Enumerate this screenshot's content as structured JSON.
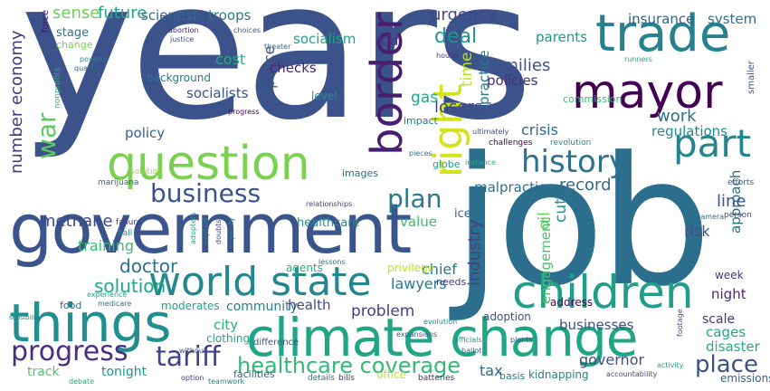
{
  "words": [
    {
      "text": "years",
      "color": "#3b528b"
    },
    {
      "text": "job",
      "color": "#2c6e8e"
    },
    {
      "text": "government",
      "color": "#39558c"
    },
    {
      "text": "climate change",
      "color": "#21a685"
    },
    {
      "text": "question",
      "color": "#7ad151"
    },
    {
      "text": "things",
      "color": "#218f8d"
    },
    {
      "text": "world state",
      "color": "#24868e"
    },
    {
      "text": "children",
      "color": "#1f9e89"
    },
    {
      "text": "trade",
      "color": "#26828e"
    },
    {
      "text": "mayor",
      "color": "#440154"
    },
    {
      "text": "border",
      "color": "#481f70"
    },
    {
      "text": "right",
      "color": "#d2e21b"
    },
    {
      "text": "history",
      "color": "#2d718e"
    },
    {
      "text": "part",
      "color": "#25848e"
    },
    {
      "text": "business",
      "color": "#3b528b"
    },
    {
      "text": "progress",
      "color": "#472f7d"
    },
    {
      "text": "tariff",
      "color": "#414487"
    },
    {
      "text": "healthcare coverage",
      "color": "#35b779"
    },
    {
      "text": "plan",
      "color": "#2a788e"
    },
    {
      "text": "methane",
      "color": "#3e4a89"
    },
    {
      "text": "war",
      "color": "#5ec962"
    },
    {
      "text": "solution",
      "color": "#22a884"
    },
    {
      "text": "doctor",
      "color": "#2d708e"
    },
    {
      "text": "training",
      "color": "#3aba76"
    },
    {
      "text": "number economy",
      "color": "#443a83"
    },
    {
      "text": "sense",
      "color": "#6ece58"
    },
    {
      "text": "future",
      "color": "#22a884"
    },
    {
      "text": "scientist",
      "color": "#31688e"
    },
    {
      "text": "troops",
      "color": "#2a788e"
    },
    {
      "text": "force",
      "color": "#471063"
    },
    {
      "text": "socialism",
      "color": "#20a486"
    },
    {
      "text": "kid",
      "color": "#443983"
    },
    {
      "text": "urgency",
      "color": "#3f4788"
    },
    {
      "text": "deal",
      "color": "#20938c"
    },
    {
      "text": "parents",
      "color": "#1f9a8a"
    },
    {
      "text": "insurance",
      "color": "#355f8d"
    },
    {
      "text": "system",
      "color": "#2d718e"
    },
    {
      "text": "families",
      "color": "#3b528b"
    },
    {
      "text": "policies",
      "color": "#472d7b"
    },
    {
      "text": "time",
      "color": "#bddf26"
    },
    {
      "text": "practice",
      "color": "#2a778e"
    },
    {
      "text": "work",
      "color": "#2e6d8e"
    },
    {
      "text": "regulations",
      "color": "#23888e"
    },
    {
      "text": "crisis",
      "color": "#31688e"
    },
    {
      "text": "losers",
      "color": "#3f4889"
    },
    {
      "text": "gas",
      "color": "#22a785"
    },
    {
      "text": "malpractice",
      "color": "#2c728e"
    },
    {
      "text": "record",
      "color": "#31688e"
    },
    {
      "text": "line",
      "color": "#3b528b"
    },
    {
      "text": "approach",
      "color": "#2e6e8e"
    },
    {
      "text": "risk",
      "color": "#3b528b"
    },
    {
      "text": "cut",
      "color": "#20928c"
    },
    {
      "text": "oil",
      "color": "#6ccd5a"
    },
    {
      "text": "industry",
      "color": "#424086"
    },
    {
      "text": "engagement",
      "color": "#4ac16d"
    },
    {
      "text": "value",
      "color": "#3bbb75"
    },
    {
      "text": "ice",
      "color": "#355f8d"
    },
    {
      "text": "healthcare",
      "color": "#21918c"
    },
    {
      "text": "problem",
      "color": "#433e85"
    },
    {
      "text": "lawyers",
      "color": "#29798e"
    },
    {
      "text": "chief",
      "color": "#2a788e"
    },
    {
      "text": "community",
      "color": "#27808e"
    },
    {
      "text": "health",
      "color": "#3e4989"
    },
    {
      "text": "city",
      "color": "#2ab07f"
    },
    {
      "text": "businesses",
      "color": "#3c4f8a"
    },
    {
      "text": "adoption",
      "color": "#39558c"
    },
    {
      "text": "scale",
      "color": "#46337e"
    },
    {
      "text": "cages",
      "color": "#21a685"
    },
    {
      "text": "disaster",
      "color": "#25ab82"
    },
    {
      "text": "place",
      "color": "#3b528b"
    },
    {
      "text": "governor",
      "color": "#3c508b"
    },
    {
      "text": "tax",
      "color": "#31688e"
    },
    {
      "text": "tonight",
      "color": "#1f9a8a"
    },
    {
      "text": "track",
      "color": "#54c568"
    },
    {
      "text": "cost",
      "color": "#27ad81"
    },
    {
      "text": "police",
      "color": "#3d4e8a"
    },
    {
      "text": "checks",
      "color": "#482475"
    },
    {
      "text": "socialists",
      "color": "#3a548c"
    },
    {
      "text": "policy",
      "color": "#355f8d"
    },
    {
      "text": "background",
      "color": "#2a768e"
    },
    {
      "text": "stage",
      "color": "#2c728e"
    },
    {
      "text": "change",
      "color": "#7ad151"
    },
    {
      "text": "night",
      "color": "#482878"
    },
    {
      "text": "week",
      "color": "#46327e"
    },
    {
      "text": "address",
      "color": "#440154"
    },
    {
      "text": "privilege",
      "color": "#c2df23"
    },
    {
      "text": "needs",
      "color": "#453781"
    },
    {
      "text": "level",
      "color": "#21918c"
    },
    {
      "text": "images",
      "color": "#2e6e8e"
    },
    {
      "text": "globe",
      "color": "#1e9c89"
    },
    {
      "text": "agents",
      "color": "#27ad81"
    },
    {
      "text": "moderates",
      "color": "#1fa088"
    },
    {
      "text": "clothing",
      "color": "#20a386"
    },
    {
      "text": "food",
      "color": "#2f6c8e"
    },
    {
      "text": "difference",
      "color": "#3b518b"
    },
    {
      "text": "facilities",
      "color": "#355e8d"
    },
    {
      "text": "kidnapping",
      "color": "#26828e"
    },
    {
      "text": "office",
      "color": "#c8e020"
    },
    {
      "text": "emissions",
      "color": "#34618d"
    },
    {
      "text": "basis",
      "color": "#287c8e"
    },
    {
      "text": "details",
      "color": "#2d708e"
    },
    {
      "text": "bills",
      "color": "#433d84"
    },
    {
      "text": "batteries",
      "color": "#472c7a"
    },
    {
      "text": "marijuana",
      "color": "#31668e"
    },
    {
      "text": "failure",
      "color": "#443983"
    },
    {
      "text": "ball",
      "color": "#218e8d"
    },
    {
      "text": "solution",
      "color": "#a2da37"
    },
    {
      "text": "person",
      "color": "#3e4a89"
    },
    {
      "text": "efforts",
      "color": "#39568c"
    },
    {
      "text": "impact",
      "color": "#2a788e"
    },
    {
      "text": "challenges",
      "color": "#440154"
    },
    {
      "text": "revolution",
      "color": "#25858e"
    },
    {
      "text": "commission",
      "color": "#3bbb75"
    },
    {
      "text": "quality",
      "color": "#31688e"
    },
    {
      "text": "poverty",
      "color": "#26828e"
    },
    {
      "text": "abortion",
      "color": "#481a6c"
    },
    {
      "text": "justice",
      "color": "#3f4889"
    },
    {
      "text": "nonprofits",
      "color": "#29af7f"
    },
    {
      "text": "theater",
      "color": "#2c718e"
    },
    {
      "text": "progress",
      "color": "#440154"
    },
    {
      "text": "house",
      "color": "#463480"
    },
    {
      "text": "choices",
      "color": "#355f8d"
    },
    {
      "text": "runners",
      "color": "#22a785"
    },
    {
      "text": "smaller",
      "color": "#3b528b"
    },
    {
      "text": "ultimately",
      "color": "#3d4d8a"
    },
    {
      "text": "instance",
      "color": "#27ad81"
    },
    {
      "text": "pieces",
      "color": "#2c738e"
    },
    {
      "text": "relationships",
      "color": "#414287"
    },
    {
      "text": "adopters",
      "color": "#20a386"
    },
    {
      "text": "explain",
      "color": "#2a788e"
    },
    {
      "text": "doubts",
      "color": "#3e4c8a"
    },
    {
      "text": "capacity",
      "color": "#27808e"
    },
    {
      "text": "lessons",
      "color": "#2c728e"
    },
    {
      "text": "expansions",
      "color": "#3a548c"
    },
    {
      "text": "officials",
      "color": "#20938c"
    },
    {
      "text": "ballot",
      "color": "#355e8d"
    },
    {
      "text": "evolution",
      "color": "#21908d"
    },
    {
      "text": "plants",
      "color": "#34608d"
    },
    {
      "text": "accountability",
      "color": "#3f4788"
    },
    {
      "text": "activity",
      "color": "#1f9a8a"
    },
    {
      "text": "without",
      "color": "#3a538b"
    },
    {
      "text": "option",
      "color": "#433e85"
    },
    {
      "text": "teamwork",
      "color": "#2a778e"
    },
    {
      "text": "debate",
      "color": "#22a785"
    },
    {
      "text": "footage",
      "color": "#3c4f8a"
    },
    {
      "text": "camera",
      "color": "#2e6e8e"
    },
    {
      "text": "sensibility",
      "color": "#26828e"
    },
    {
      "text": "experience",
      "color": "#22a785"
    },
    {
      "text": "medicare",
      "color": "#31688e"
    }
  ]
}
